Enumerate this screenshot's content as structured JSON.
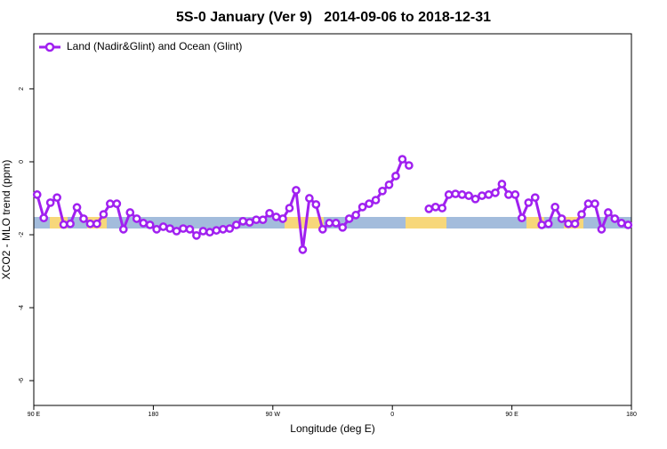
{
  "chart_data": {
    "type": "line",
    "title": "5S-0 January (Ver 9)   2014-09-06 to 2018-12-31",
    "xlabel": "Longitude (deg E)",
    "ylabel": "XCO2 - MLO trend (ppm)",
    "xlim": [
      90,
      540
    ],
    "xticks": [
      {
        "value": 90,
        "label": "90 E"
      },
      180,
      {
        "value": 270,
        "label": "90 W"
      },
      {
        "value": 360,
        "label": "0"
      },
      {
        "value": 450,
        "label": "90 E"
      },
      {
        "value": 540,
        "label": "180"
      }
    ],
    "ylim": [
      -6.68,
      3.51
    ],
    "yticks": [
      -6,
      -4,
      -2,
      0,
      2
    ],
    "legend": "top-left",
    "x": [
      92.5,
      97.5,
      102.5,
      107.5,
      112.5,
      117.5,
      122.5,
      127.5,
      132.5,
      137.5,
      142.5,
      147.5,
      152.5,
      157.5,
      162.5,
      167.5,
      172.5,
      177.5,
      182.5,
      187.5,
      192.5,
      197.5,
      202.5,
      207.5,
      212.5,
      217.5,
      222.5,
      227.5,
      232.5,
      237.5,
      242.5,
      247.5,
      252.5,
      257.5,
      262.5,
      267.5,
      272.5,
      277.5,
      282.5,
      287.5,
      292.5,
      297.5,
      302.5,
      307.5,
      312.5,
      317.5,
      322.5,
      327.5,
      332.5,
      337.5,
      342.5,
      347.5,
      352.5,
      357.5,
      362.5,
      367.5,
      372.5,
      377.5,
      382.5,
      387.5,
      392.5,
      397.5,
      402.5,
      407.5,
      412.5,
      417.5,
      422.5,
      427.5,
      432.5,
      437.5,
      442.5,
      447.5,
      452.5,
      457.5,
      462.5,
      467.5,
      472.5,
      477.5,
      482.5,
      487.5,
      492.5,
      497.5,
      502.5,
      507.5,
      512.5,
      517.5,
      522.5,
      527.5,
      532.5,
      537.5
    ],
    "series": [
      {
        "name": "Land (Nadir&Glint) and Ocean (Glint)",
        "color": "#a020f0",
        "values": [
          -0.9,
          -1.54,
          -1.12,
          -0.98,
          -1.72,
          -1.7,
          -1.25,
          -1.56,
          -1.7,
          -1.7,
          -1.44,
          -1.15,
          -1.15,
          -1.85,
          -1.39,
          -1.56,
          -1.68,
          -1.73,
          -1.85,
          -1.78,
          -1.83,
          -1.9,
          -1.83,
          -1.85,
          -2.02,
          -1.9,
          -1.93,
          -1.88,
          -1.85,
          -1.83,
          -1.73,
          -1.63,
          -1.66,
          -1.59,
          -1.59,
          -1.41,
          -1.51,
          -1.56,
          -1.27,
          -0.78,
          -2.41,
          -1.0,
          -1.17,
          -1.85,
          -1.68,
          -1.68,
          -1.8,
          -1.56,
          -1.46,
          -1.24,
          -1.15,
          -1.05,
          -0.8,
          -0.63,
          -0.39,
          0.07,
          -0.1,
          null,
          null,
          -1.29,
          -1.24,
          -1.27,
          -0.9,
          -0.88,
          -0.9,
          -0.93,
          -1.02,
          -0.93,
          -0.9,
          -0.85,
          -0.61,
          -0.9,
          -0.9,
          -1.54,
          -1.12,
          -0.98,
          -1.73,
          -1.7,
          -1.24,
          -1.56,
          -1.7,
          -1.7,
          -1.44,
          -1.15,
          -1.15,
          -1.85,
          -1.39,
          -1.56,
          -1.68,
          -1.73
        ]
      }
    ]
  }
}
